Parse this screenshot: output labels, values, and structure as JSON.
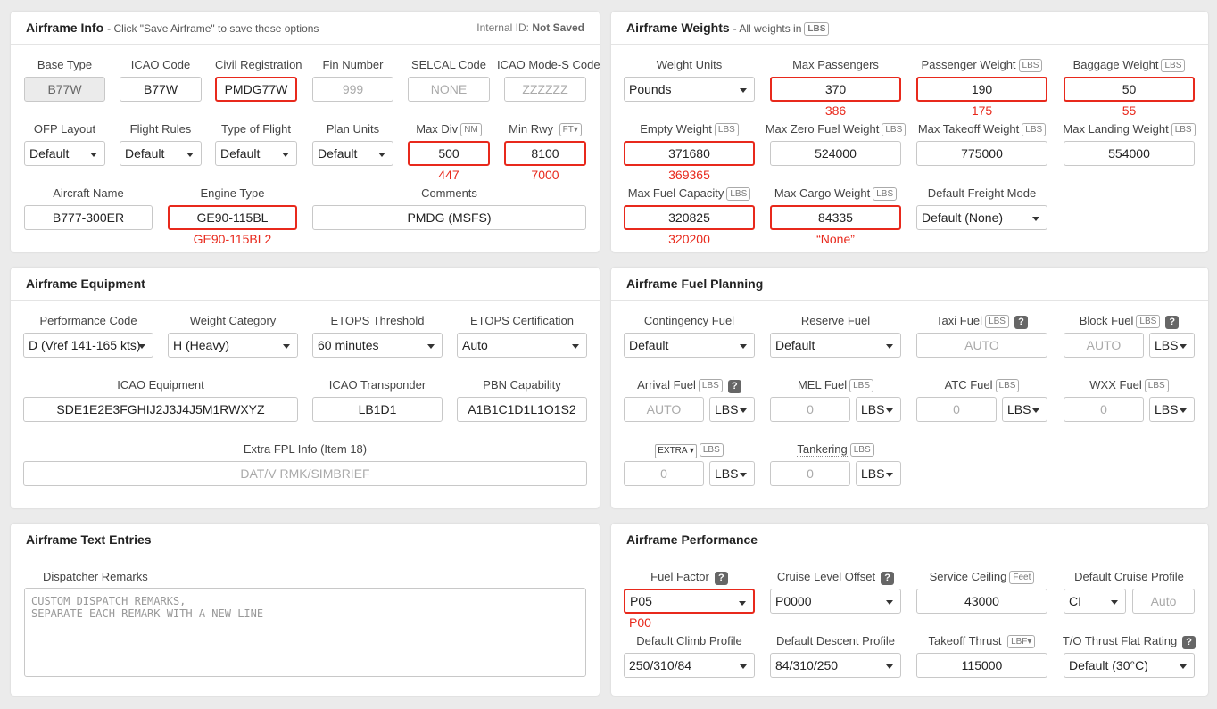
{
  "info": {
    "title": "Airframe Info",
    "subtitle": "- Click \"Save Airframe\" to save these options",
    "id_label": "Internal ID:",
    "id_value": "Not Saved",
    "l_base": "Base Type",
    "l_icao": "ICAO Code",
    "l_civ": "Civil Registration",
    "l_fin": "Fin Number",
    "l_selcal": "SELCAL Code",
    "l_modes": "ICAO Mode-S Code",
    "v_base": "B77W",
    "v_icao": "B77W",
    "v_civ": "PMDG77W",
    "p_fin": "999",
    "p_selcal": "NONE",
    "p_modes": "ZZZZZZ",
    "l_ofp": "OFP Layout",
    "l_rules": "Flight Rules",
    "l_type": "Type of Flight",
    "l_plan": "Plan Units",
    "l_maxdiv": "Max Div",
    "u_maxdiv": "NM",
    "l_minrwy": "Min Rwy",
    "u_minrwy": "FT",
    "v_ofp": "Default",
    "v_rules": "Default",
    "v_type": "Default",
    "v_plan": "Default",
    "v_maxdiv": "500",
    "v_minrwy": "8100",
    "r_maxdiv": "447",
    "r_minrwy": "7000",
    "l_name": "Aircraft Name",
    "l_engine": "Engine Type",
    "l_comments": "Comments",
    "v_name": "B777-300ER",
    "v_engine": "GE90-115BL",
    "v_comments": "PMDG (MSFS)",
    "r_engine": "GE90-115BL2"
  },
  "weights": {
    "title": "Airframe Weights",
    "subtitle": "- All weights in",
    "unit": "LBS",
    "l_units": "Weight Units",
    "l_maxpax": "Max Passengers",
    "l_paxw": "Passenger Weight",
    "l_bagw": "Baggage Weight",
    "u": "LBS",
    "v_units": "Pounds",
    "v_maxpax": "370",
    "v_paxw": "190",
    "v_bagw": "50",
    "r_maxpax": "386",
    "r_paxw": "175",
    "r_bagw": "55",
    "l_empty": "Empty Weight",
    "l_mzfw": "Max Zero Fuel Weight",
    "l_mtow": "Max Takeoff Weight",
    "l_mlw": "Max Landing Weight",
    "v_empty": "371680",
    "v_mzfw": "524000",
    "v_mtow": "775000",
    "v_mlw": "554000",
    "r_empty": "369365",
    "l_fuelcap": "Max Fuel Capacity",
    "l_cargo": "Max Cargo Weight",
    "l_freight": "Default Freight Mode",
    "v_fuelcap": "320825",
    "v_cargo": "84335",
    "v_freight": "Default (None)",
    "r_fuelcap": "320200",
    "r_cargo": "“None”"
  },
  "equip": {
    "title": "Airframe Equipment",
    "l_perf": "Performance Code",
    "l_wcat": "Weight Category",
    "l_etops": "ETOPS Threshold",
    "l_etcert": "ETOPS Certification",
    "v_perf": "D (Vref 141-165 kts)",
    "v_wcat": "H (Heavy)",
    "v_etops": "60 minutes",
    "v_etcert": "Auto",
    "l_icaoeq": "ICAO Equipment",
    "l_xpdr": "ICAO Transponder",
    "l_pbn": "PBN Capability",
    "v_icaoeq": "SDE1E2E3FGHIJ2J3J4J5M1RWXYZ",
    "v_xpdr": "LB1D1",
    "v_pbn": "A1B1C1D1L1O1S2",
    "l_extra": "Extra FPL Info (Item 18)",
    "p_extra": "DAT/V RMK/SIMBRIEF"
  },
  "fuel": {
    "title": "Airframe Fuel Planning",
    "l_cont": "Contingency Fuel",
    "l_res": "Reserve Fuel",
    "l_taxi": "Taxi Fuel",
    "l_block": "Block Fuel",
    "u": "LBS",
    "q": "?",
    "v_cont": "Default",
    "v_res": "Default",
    "p_taxi": "AUTO",
    "p_block": "AUTO",
    "s_block": "LBS",
    "l_arr": "Arrival Fuel",
    "l_mel": "MEL Fuel",
    "l_atc": "ATC Fuel",
    "l_wxx": "WXX Fuel",
    "p_arr": "AUTO",
    "p_mel": "0",
    "p_atc": "0",
    "p_wxx": "0",
    "l_extra": "EXTRA",
    "l_tank": "Tankering",
    "p_extra": "0",
    "p_tank": "0"
  },
  "text": {
    "title": "Airframe Text Entries",
    "l_remarks": "Dispatcher Remarks",
    "p_remarks": "CUSTOM DISPATCH REMARKS,\nSEPARATE EACH REMARK WITH A NEW LINE"
  },
  "perf": {
    "title": "Airframe Performance",
    "l_ff": "Fuel Factor",
    "l_clo": "Cruise Level Offset",
    "l_ceil": "Service Ceiling",
    "u_ceil": "Feet",
    "l_dcp": "Default Cruise Profile",
    "q": "?",
    "v_ff": "P05",
    "r_ff": "P00",
    "v_clo": "P0000",
    "v_ceil": "43000",
    "v_dcp": "CI",
    "p_dcp": "Auto",
    "l_climb": "Default Climb Profile",
    "l_desc": "Default Descent Profile",
    "l_thrust": "Takeoff Thrust",
    "u_thrust": "LBF",
    "l_flat": "T/O Thrust Flat Rating",
    "v_climb": "250/310/84",
    "v_desc": "84/310/250",
    "v_thrust": "115000",
    "v_flat": "Default (30°C)"
  }
}
